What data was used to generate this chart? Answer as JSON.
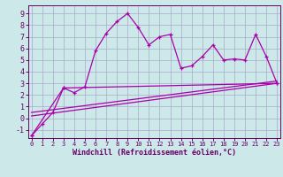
{
  "xlabel": "Windchill (Refroidissement éolien,°C)",
  "bg_color": "#cce8e8",
  "grid_color": "#aaaacc",
  "line_color": "#aa00aa",
  "spine_color": "#660066",
  "font_color": "#660066",
  "x_ticks": [
    0,
    1,
    2,
    3,
    4,
    5,
    6,
    7,
    8,
    9,
    10,
    11,
    12,
    13,
    14,
    15,
    16,
    17,
    18,
    19,
    20,
    21,
    22,
    23
  ],
  "y_ticks": [
    -1,
    0,
    1,
    2,
    3,
    4,
    5,
    6,
    7,
    8,
    9
  ],
  "ylim": [
    -1.7,
    9.7
  ],
  "xlim": [
    -0.3,
    23.3
  ],
  "series1_x": [
    0,
    1,
    2,
    3,
    4,
    5,
    6,
    7,
    8,
    9,
    10,
    11,
    12,
    13,
    14,
    15,
    16,
    17,
    18,
    19,
    20,
    21,
    22,
    23
  ],
  "series1_y": [
    -1.5,
    -0.5,
    0.5,
    2.6,
    2.2,
    2.7,
    5.8,
    7.3,
    8.3,
    9.0,
    7.8,
    6.3,
    7.0,
    7.2,
    4.3,
    4.5,
    5.3,
    6.3,
    5.0,
    5.1,
    5.0,
    7.2,
    5.3,
    3.0
  ],
  "series2_x": [
    0,
    3,
    23
  ],
  "series2_y": [
    -1.5,
    2.6,
    3.0
  ],
  "series3_x": [
    0,
    23
  ],
  "series3_y": [
    0.2,
    3.0
  ],
  "series4_x": [
    0,
    23
  ],
  "series4_y": [
    0.5,
    3.2
  ]
}
